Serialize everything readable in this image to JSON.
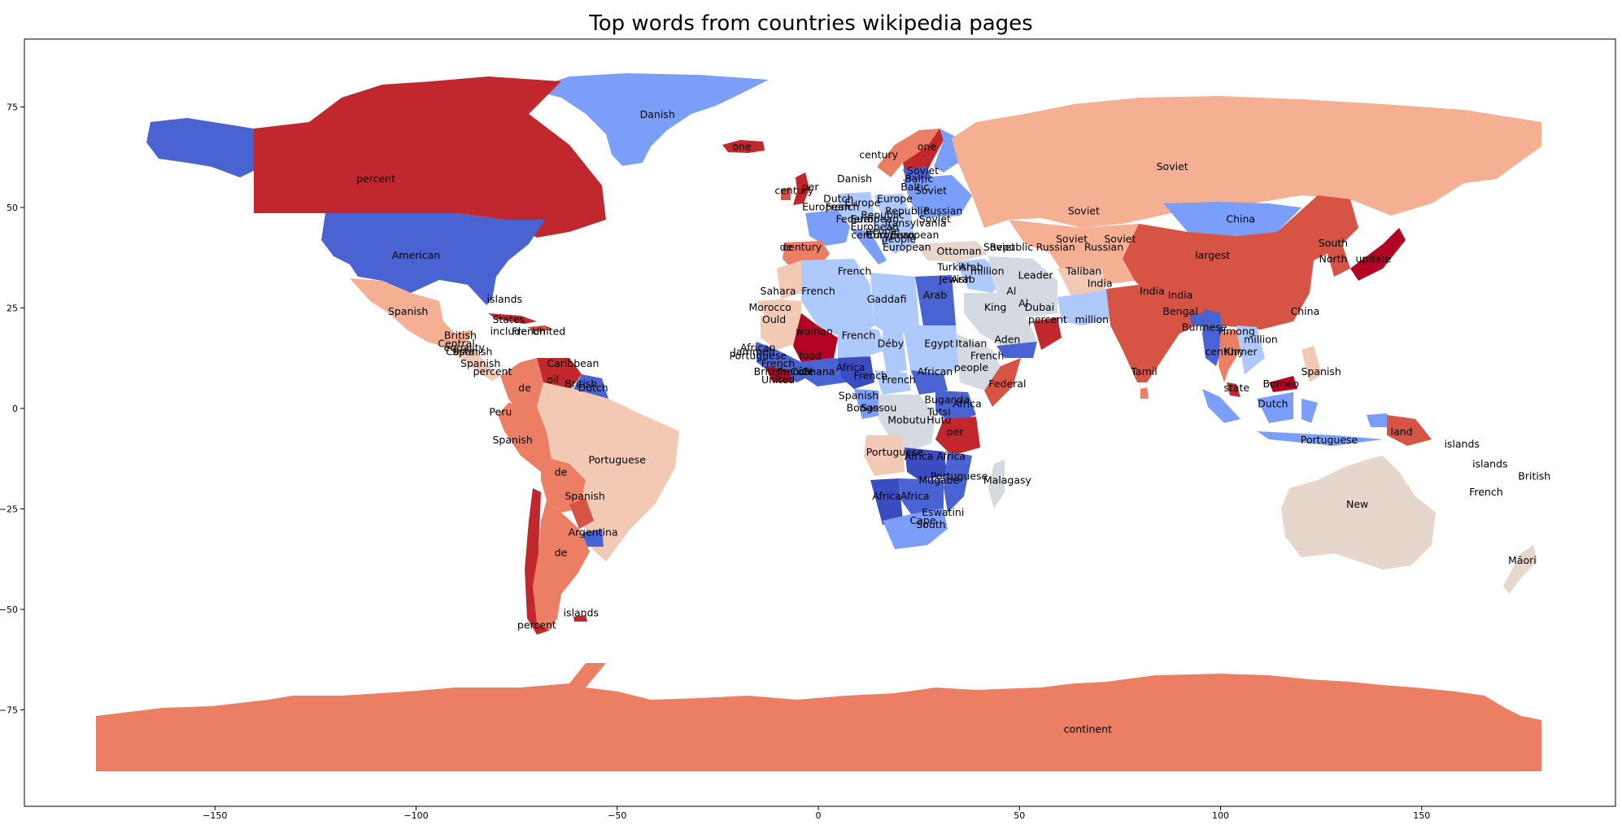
{
  "title": "Top words from countries wikipedia pages",
  "colors": {
    "deep_red": "#b40426",
    "red": "#c0282e",
    "red2": "#d75445",
    "salmon": "#ec7f63",
    "peach": "#f5b093",
    "light_peach": "#f2c9b4",
    "beige": "#e6d6cc",
    "grey": "#d4d9e2",
    "light_blue": "#aec9fc",
    "blue": "#7b9ff9",
    "mid_blue": "#4a63d3",
    "deep_blue": "#3b4cc0"
  },
  "chart_data": {
    "type": "choropleth",
    "title": "Top words from countries wikipedia pages",
    "xlim": [
      -200,
      195
    ],
    "ylim": [
      -98,
      93
    ],
    "xticks": [
      -150,
      -100,
      -50,
      0,
      50,
      100,
      150
    ],
    "yticks": [
      75,
      50,
      25,
      0,
      -25,
      -50,
      -75
    ],
    "colormap": "coolwarm",
    "labels": [
      {
        "word": "Danish",
        "lon": -40,
        "lat": 73
      },
      {
        "word": "one",
        "lon": -19,
        "lat": 65
      },
      {
        "word": "percent",
        "lon": -110,
        "lat": 57
      },
      {
        "word": "American",
        "lon": -100,
        "lat": 38
      },
      {
        "word": "islands",
        "lon": -78,
        "lat": 27
      },
      {
        "word": "Spanish",
        "lon": -102,
        "lat": 24
      },
      {
        "word": "States",
        "lon": -77,
        "lat": 22
      },
      {
        "word": "include",
        "lon": -77,
        "lat": 19
      },
      {
        "word": "French",
        "lon": -72,
        "lat": 19
      },
      {
        "word": "United",
        "lon": -67,
        "lat": 19
      },
      {
        "word": "British",
        "lon": -89,
        "lat": 18
      },
      {
        "word": "Central",
        "lon": -90,
        "lat": 16
      },
      {
        "word": "equality",
        "lon": -88,
        "lat": 15
      },
      {
        "word": "Costa",
        "lon": -89,
        "lat": 14
      },
      {
        "word": "Spanish",
        "lon": -86,
        "lat": 14
      },
      {
        "word": "Spanish",
        "lon": -84,
        "lat": 11
      },
      {
        "word": "percent",
        "lon": -81,
        "lat": 9
      },
      {
        "word": "Caribbean",
        "lon": -61,
        "lat": 11
      },
      {
        "word": "oil",
        "lon": -66,
        "lat": 7
      },
      {
        "word": "de",
        "lon": -73,
        "lat": 5
      },
      {
        "word": "British",
        "lon": -59,
        "lat": 6
      },
      {
        "word": "Dutch",
        "lon": -56,
        "lat": 5
      },
      {
        "word": "Peru",
        "lon": -79,
        "lat": -1
      },
      {
        "word": "Spanish",
        "lon": -76,
        "lat": -8
      },
      {
        "word": "Portuguese",
        "lon": -50,
        "lat": -13
      },
      {
        "word": "de",
        "lon": -64,
        "lat": -16
      },
      {
        "word": "Spanish",
        "lon": -58,
        "lat": -22
      },
      {
        "word": "Argentina",
        "lon": -56,
        "lat": -31
      },
      {
        "word": "de",
        "lon": -64,
        "lat": -36
      },
      {
        "word": "islands",
        "lon": -59,
        "lat": -51
      },
      {
        "word": "percent",
        "lon": -70,
        "lat": -54
      },
      {
        "word": "century",
        "lon": 15,
        "lat": 63
      },
      {
        "word": "one",
        "lon": 27,
        "lat": 65
      },
      {
        "word": "Danish",
        "lon": 9,
        "lat": 57
      },
      {
        "word": "Soviet",
        "lon": 26,
        "lat": 59
      },
      {
        "word": "Baltic",
        "lon": 25,
        "lat": 57
      },
      {
        "word": "Baltic",
        "lon": 24,
        "lat": 55
      },
      {
        "word": "Soviet",
        "lon": 28,
        "lat": 54
      },
      {
        "word": "century",
        "lon": -6,
        "lat": 54
      },
      {
        "word": "per",
        "lon": -2,
        "lat": 55
      },
      {
        "word": "Dutch",
        "lon": 5,
        "lat": 52
      },
      {
        "word": "Europe",
        "lon": 19,
        "lat": 52
      },
      {
        "word": "Europe",
        "lon": 11,
        "lat": 51
      },
      {
        "word": "Republic",
        "lon": 22,
        "lat": 49
      },
      {
        "word": "Russian",
        "lon": 31,
        "lat": 49
      },
      {
        "word": "French",
        "lon": 6,
        "lat": 50
      },
      {
        "word": "European",
        "lon": 2,
        "lat": 50
      },
      {
        "word": "Federal",
        "lon": 9,
        "lat": 47
      },
      {
        "word": "European",
        "lon": 14,
        "lat": 47
      },
      {
        "word": "Republic",
        "lon": 16,
        "lat": 48
      },
      {
        "word": "Transylvania",
        "lon": 24,
        "lat": 46
      },
      {
        "word": "Soviet",
        "lon": 29,
        "lat": 47
      },
      {
        "word": "European",
        "lon": 14,
        "lat": 45
      },
      {
        "word": "people",
        "lon": 16,
        "lat": 44
      },
      {
        "word": "century",
        "lon": 13,
        "lat": 43
      },
      {
        "word": "European",
        "lon": 18,
        "lat": 43
      },
      {
        "word": "European",
        "lon": 24,
        "lat": 43
      },
      {
        "word": "people",
        "lon": 20,
        "lat": 42
      },
      {
        "word": "European",
        "lon": 22,
        "lat": 40
      },
      {
        "word": "century",
        "lon": -4,
        "lat": 40
      },
      {
        "word": "de",
        "lon": -8,
        "lat": 40
      },
      {
        "word": "Ottoman",
        "lon": 35,
        "lat": 39
      },
      {
        "word": "Soviet",
        "lon": 45,
        "lat": 40
      },
      {
        "word": "Republic",
        "lon": 48,
        "lat": 40
      },
      {
        "word": "Russian",
        "lon": 59,
        "lat": 40
      },
      {
        "word": "Russian",
        "lon": 71,
        "lat": 40
      },
      {
        "word": "Soviet",
        "lon": 63,
        "lat": 42
      },
      {
        "word": "Soviet",
        "lon": 75,
        "lat": 42
      },
      {
        "word": "Soviet",
        "lon": 88,
        "lat": 60
      },
      {
        "word": "Soviet",
        "lon": 66,
        "lat": 49
      },
      {
        "word": "China",
        "lon": 105,
        "lat": 47
      },
      {
        "word": "largest",
        "lon": 98,
        "lat": 38
      },
      {
        "word": "South",
        "lon": 128,
        "lat": 41
      },
      {
        "word": "North",
        "lon": 128,
        "lat": 37
      },
      {
        "word": "update",
        "lon": 138,
        "lat": 37
      },
      {
        "word": "Turkish",
        "lon": 34,
        "lat": 35
      },
      {
        "word": "Arab",
        "lon": 38,
        "lat": 35
      },
      {
        "word": "Jewish",
        "lon": 34,
        "lat": 32
      },
      {
        "word": "Arab",
        "lon": 36,
        "lat": 32
      },
      {
        "word": "million",
        "lon": 42,
        "lat": 34
      },
      {
        "word": "Leader",
        "lon": 54,
        "lat": 33
      },
      {
        "word": "Taliban",
        "lon": 66,
        "lat": 34
      },
      {
        "word": "India",
        "lon": 70,
        "lat": 31
      },
      {
        "word": "India",
        "lon": 83,
        "lat": 29
      },
      {
        "word": "India",
        "lon": 90,
        "lat": 28
      },
      {
        "word": "Sahara",
        "lon": -10,
        "lat": 29
      },
      {
        "word": "French",
        "lon": 9,
        "lat": 34
      },
      {
        "word": "French",
        "lon": 0,
        "lat": 29
      },
      {
        "word": "Gaddafi",
        "lon": 17,
        "lat": 27
      },
      {
        "word": "Arab",
        "lon": 29,
        "lat": 28
      },
      {
        "word": "King",
        "lon": 44,
        "lat": 25
      },
      {
        "word": "Al",
        "lon": 51,
        "lat": 26
      },
      {
        "word": "Dubai",
        "lon": 55,
        "lat": 25
      },
      {
        "word": "percent",
        "lon": 57,
        "lat": 22
      },
      {
        "word": "Al",
        "lon": 48,
        "lat": 29
      },
      {
        "word": "Morocco",
        "lon": -12,
        "lat": 25
      },
      {
        "word": "Ould",
        "lon": -11,
        "lat": 22
      },
      {
        "word": "women",
        "lon": -1,
        "lat": 19
      },
      {
        "word": "French",
        "lon": 10,
        "lat": 18
      },
      {
        "word": "Déby",
        "lon": 18,
        "lat": 16
      },
      {
        "word": "Egypt",
        "lon": 30,
        "lat": 16
      },
      {
        "word": "Italian",
        "lon": 38,
        "lat": 16
      },
      {
        "word": "Aden",
        "lon": 47,
        "lat": 17
      },
      {
        "word": "French",
        "lon": 42,
        "lat": 13
      },
      {
        "word": "people",
        "lon": 38,
        "lat": 10
      },
      {
        "word": "African",
        "lon": -15,
        "lat": 15
      },
      {
        "word": "Jammeh",
        "lon": -16,
        "lat": 14
      },
      {
        "word": "Portuguese",
        "lon": -15,
        "lat": 13
      },
      {
        "word": "food",
        "lon": -2,
        "lat": 13
      },
      {
        "word": "French",
        "lon": -10,
        "lat": 11
      },
      {
        "word": "British",
        "lon": -12,
        "lat": 9
      },
      {
        "word": "French",
        "lon": -6,
        "lat": 9
      },
      {
        "word": "Côte",
        "lon": -4,
        "lat": 9
      },
      {
        "word": "Ghana",
        "lon": 0,
        "lat": 9
      },
      {
        "word": "Africa",
        "lon": 8,
        "lat": 10
      },
      {
        "word": "United",
        "lon": -10,
        "lat": 7
      },
      {
        "word": "French",
        "lon": 13,
        "lat": 8
      },
      {
        "word": "French",
        "lon": 20,
        "lat": 7
      },
      {
        "word": "African",
        "lon": 29,
        "lat": 9
      },
      {
        "word": "Federal",
        "lon": 47,
        "lat": 6
      },
      {
        "word": "Spanish",
        "lon": 10,
        "lat": 3
      },
      {
        "word": "Bongo",
        "lon": 11,
        "lat": 0
      },
      {
        "word": "Sassou",
        "lon": 15,
        "lat": 0
      },
      {
        "word": "Buganda",
        "lon": 32,
        "lat": 2
      },
      {
        "word": "Africa",
        "lon": 37,
        "lat": 1
      },
      {
        "word": "Mobutu",
        "lon": 22,
        "lat": -3
      },
      {
        "word": "Tutsi",
        "lon": 30,
        "lat": -1
      },
      {
        "word": "Hutu",
        "lon": 30,
        "lat": -3
      },
      {
        "word": "per",
        "lon": 34,
        "lat": -6
      },
      {
        "word": "Portuguese",
        "lon": 19,
        "lat": -11
      },
      {
        "word": "Africa",
        "lon": 25,
        "lat": -12
      },
      {
        "word": "Africa",
        "lon": 33,
        "lat": -12
      },
      {
        "word": "Portuguese",
        "lon": 35,
        "lat": -17
      },
      {
        "word": "Mugabe",
        "lon": 30,
        "lat": -18
      },
      {
        "word": "Malagasy",
        "lon": 47,
        "lat": -18
      },
      {
        "word": "Africa",
        "lon": 17,
        "lat": -22
      },
      {
        "word": "Africa",
        "lon": 24,
        "lat": -22
      },
      {
        "word": "Eswatini",
        "lon": 31,
        "lat": -26
      },
      {
        "word": "Cape",
        "lon": 26,
        "lat": -28
      },
      {
        "word": "South",
        "lon": 28,
        "lat": -29
      },
      {
        "word": "million",
        "lon": 68,
        "lat": 22
      },
      {
        "word": "Bengal",
        "lon": 90,
        "lat": 24
      },
      {
        "word": "China",
        "lon": 121,
        "lat": 24
      },
      {
        "word": "Tamil",
        "lon": 81,
        "lat": 9
      },
      {
        "word": "Burmese",
        "lon": 96,
        "lat": 20
      },
      {
        "word": "Hmong",
        "lon": 104,
        "lat": 19
      },
      {
        "word": "million",
        "lon": 110,
        "lat": 17
      },
      {
        "word": "century",
        "lon": 101,
        "lat": 14
      },
      {
        "word": "Khmer",
        "lon": 105,
        "lat": 14
      },
      {
        "word": "Spanish",
        "lon": 125,
        "lat": 9
      },
      {
        "word": "state",
        "lon": 104,
        "lat": 5
      },
      {
        "word": "Borneo",
        "lon": 115,
        "lat": 6
      },
      {
        "word": "Dutch",
        "lon": 113,
        "lat": 1
      },
      {
        "word": "Portuguese",
        "lon": 127,
        "lat": -8
      },
      {
        "word": "land",
        "lon": 145,
        "lat": -6
      },
      {
        "word": "islands",
        "lon": 160,
        "lat": -9
      },
      {
        "word": "islands",
        "lon": 167,
        "lat": -14
      },
      {
        "word": "British",
        "lon": 178,
        "lat": -17
      },
      {
        "word": "French",
        "lon": 166,
        "lat": -21
      },
      {
        "word": "New",
        "lon": 134,
        "lat": -24
      },
      {
        "word": "Māori",
        "lon": 175,
        "lat": -38
      },
      {
        "word": "continent",
        "lon": 67,
        "lat": -80
      }
    ]
  }
}
